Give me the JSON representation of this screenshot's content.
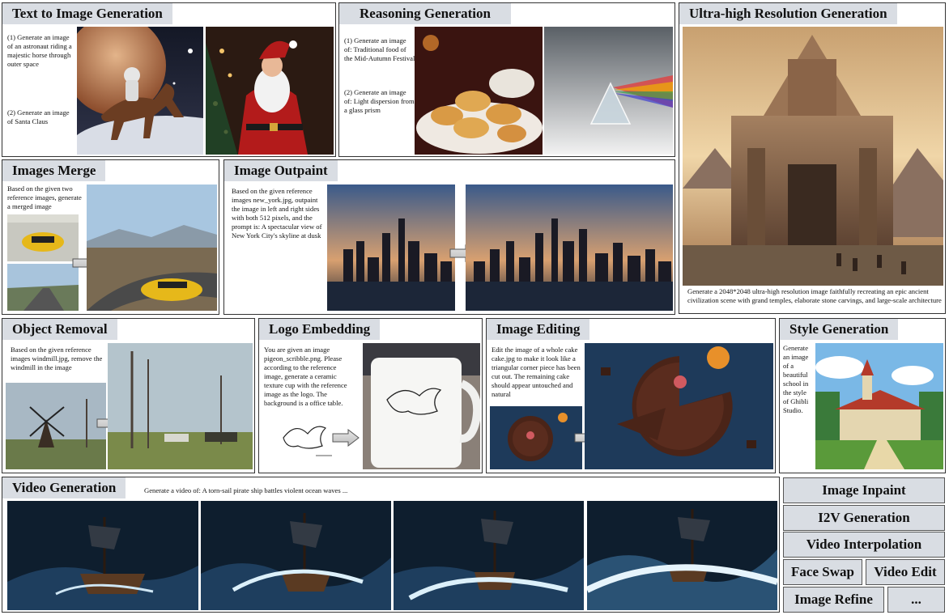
{
  "t2i": {
    "title": "Text to Image Generation",
    "prompt1": "(1) Generate an image of an astronaut riding a majestic horse through outer space",
    "prompt2": "(2) Generate an image of Santa Claus"
  },
  "reason": {
    "title": "Reasoning Generation",
    "prompt1": "(1) Generate an image of: Traditional food of the Mid-Autumn Festival",
    "prompt2": "(2) Generate an image of: Light dispersion from a glass prism"
  },
  "uhr": {
    "title": "Ultra-high Resolution Generation",
    "prompt": "Generate a 2048*2048 ultra-high resolution image faithfully recreating an epic ancient civilization scene with grand temples, elaborate stone carvings, and large-scale architecture"
  },
  "merge": {
    "title": "Images Merge",
    "prompt": "Based on the given two reference images, generate a merged image"
  },
  "outpaint": {
    "title": "Image Outpaint",
    "prompt": "Based on the given reference images new_york.jpg, outpaint the image in left and right sides with both 512 pixels, and the prompt is: A spectacular view of New York City's skyline at dusk"
  },
  "removal": {
    "title": "Object Removal",
    "prompt": "Based on the given reference images windmill.jpg, remove the windmill in the image"
  },
  "logo": {
    "title": "Logo Embedding",
    "prompt": "You are given an image pigeon_scribble.png. Please according to the reference image, generate a ceramic texture cup with the reference image as the logo. The background is a office table."
  },
  "editing": {
    "title": "Image Editing",
    "prompt": "Edit the image of a whole cake cake.jpg to make it look like a triangular corner piece has been cut out. The remaining cake should appear untouched and natural"
  },
  "style": {
    "title": "Style Generation",
    "prompt": "Generate an image of a beautiful school in the style of Ghibli Studio."
  },
  "video": {
    "title": "Video Generation",
    "prompt": "Generate a video of: A torn-sail pirate ship battles violent ocean waves ..."
  },
  "buttons": {
    "inpaint": "Image Inpaint",
    "i2v": "I2V Generation",
    "interp": "Video Interpolation",
    "faceswap": "Face Swap",
    "videoedit": "Video Edit",
    "refine": "Image Refine",
    "more": "..."
  }
}
